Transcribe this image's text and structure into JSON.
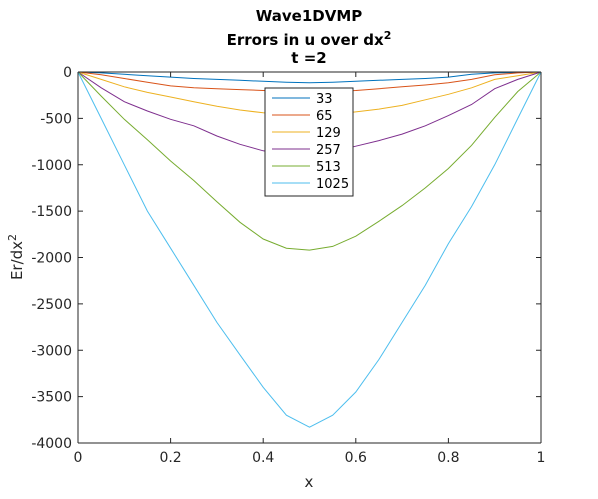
{
  "chart_data": {
    "type": "line",
    "title": "Wave1DVMP",
    "subtitle_main": "Errors in u over dx",
    "subtitle_sup": "2",
    "subtitle2": "t =2",
    "xlabel": "x",
    "ylabel_main": "Er/dx",
    "ylabel_sup": "2",
    "xlim": [
      0,
      1
    ],
    "ylim": [
      -4000,
      0
    ],
    "xticks": [
      "0",
      "0.2",
      "0.4",
      "0.6",
      "0.8",
      "1"
    ],
    "yticks": [
      "0",
      "-500",
      "-1000",
      "-1500",
      "-2000",
      "-2500",
      "-3000",
      "-3500",
      "-4000"
    ],
    "legend_position": "top-center",
    "grid": false,
    "series": [
      {
        "name": "33",
        "color": "#0072BD",
        "x": [
          0,
          0.05,
          0.1,
          0.15,
          0.2,
          0.25,
          0.3,
          0.35,
          0.4,
          0.45,
          0.5,
          0.55,
          0.6,
          0.65,
          0.7,
          0.75,
          0.8,
          0.85,
          0.9,
          0.95,
          1
        ],
        "y": [
          0,
          -10,
          -25,
          -40,
          -55,
          -70,
          -80,
          -90,
          -100,
          -110,
          -115,
          -110,
          -100,
          -90,
          -80,
          -70,
          -55,
          -25,
          -10,
          -5,
          0
        ]
      },
      {
        "name": "65",
        "color": "#D95319",
        "x": [
          0,
          0.05,
          0.1,
          0.15,
          0.2,
          0.25,
          0.3,
          0.35,
          0.4,
          0.45,
          0.5,
          0.55,
          0.6,
          0.65,
          0.7,
          0.75,
          0.8,
          0.85,
          0.9,
          0.95,
          1
        ],
        "y": [
          0,
          -30,
          -70,
          -110,
          -150,
          -170,
          -180,
          -190,
          -200,
          -210,
          -215,
          -210,
          -200,
          -180,
          -160,
          -140,
          -115,
          -80,
          -30,
          -10,
          0
        ]
      },
      {
        "name": "129",
        "color": "#EDB120",
        "x": [
          0,
          0.05,
          0.1,
          0.15,
          0.2,
          0.25,
          0.3,
          0.35,
          0.4,
          0.45,
          0.5,
          0.55,
          0.6,
          0.65,
          0.7,
          0.75,
          0.8,
          0.85,
          0.9,
          0.95,
          1
        ],
        "y": [
          0,
          -80,
          -160,
          -220,
          -270,
          -320,
          -370,
          -410,
          -440,
          -460,
          -470,
          -455,
          -430,
          -400,
          -360,
          -300,
          -240,
          -170,
          -80,
          -40,
          0
        ]
      },
      {
        "name": "257",
        "color": "#7E2F8E",
        "x": [
          0,
          0.05,
          0.1,
          0.15,
          0.2,
          0.25,
          0.3,
          0.35,
          0.4,
          0.45,
          0.5,
          0.55,
          0.6,
          0.65,
          0.7,
          0.75,
          0.8,
          0.85,
          0.9,
          0.95,
          1
        ],
        "y": [
          0,
          -170,
          -320,
          -420,
          -510,
          -580,
          -690,
          -780,
          -850,
          -890,
          -900,
          -860,
          -800,
          -740,
          -670,
          -580,
          -470,
          -350,
          -180,
          -80,
          0
        ]
      },
      {
        "name": "513",
        "color": "#77AC30",
        "x": [
          0,
          0.05,
          0.1,
          0.15,
          0.2,
          0.25,
          0.3,
          0.35,
          0.4,
          0.45,
          0.5,
          0.55,
          0.6,
          0.65,
          0.7,
          0.75,
          0.8,
          0.85,
          0.9,
          0.95,
          1
        ],
        "y": [
          0,
          -260,
          -510,
          -730,
          -960,
          -1170,
          -1400,
          -1620,
          -1800,
          -1900,
          -1920,
          -1880,
          -1770,
          -1610,
          -1440,
          -1250,
          -1040,
          -790,
          -490,
          -210,
          0
        ]
      },
      {
        "name": "1025",
        "color": "#4DBEEE",
        "x": [
          0,
          0.05,
          0.1,
          0.15,
          0.2,
          0.25,
          0.3,
          0.35,
          0.4,
          0.45,
          0.5,
          0.55,
          0.6,
          0.65,
          0.7,
          0.75,
          0.8,
          0.85,
          0.9,
          0.95,
          1
        ],
        "y": [
          0,
          -500,
          -1000,
          -1500,
          -1900,
          -2300,
          -2700,
          -3050,
          -3400,
          -3700,
          -3830,
          -3700,
          -3450,
          -3100,
          -2700,
          -2300,
          -1850,
          -1450,
          -1000,
          -500,
          0
        ]
      }
    ]
  }
}
